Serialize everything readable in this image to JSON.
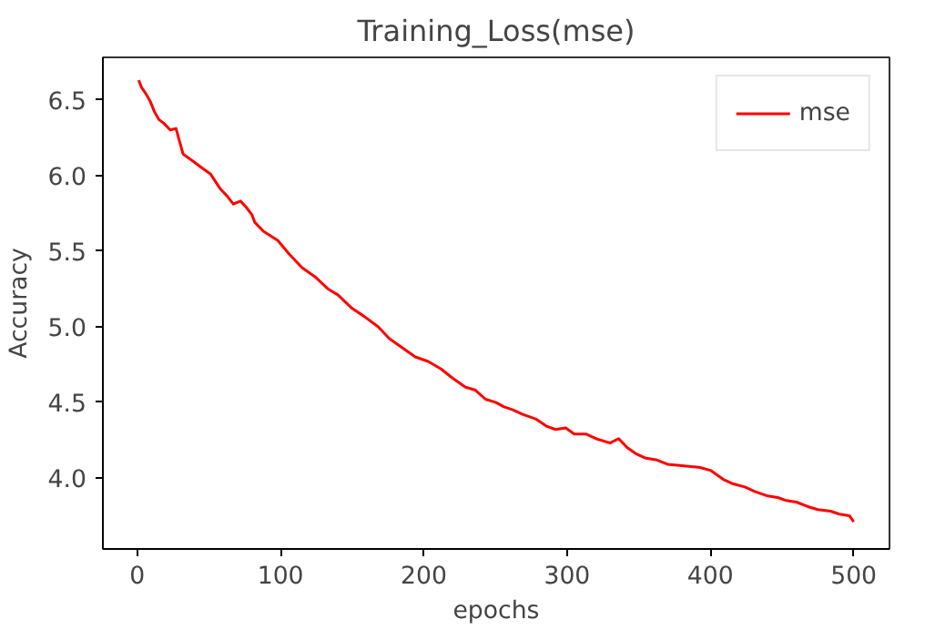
{
  "chart_data": {
    "type": "line",
    "title": "Training_Loss(mse)",
    "xlabel": "epochs",
    "ylabel": "Accuracy",
    "xlim": [
      -24,
      525
    ],
    "ylim": [
      3.53,
      6.78
    ],
    "xticks": [
      0,
      100,
      200,
      300,
      400,
      500
    ],
    "yticks": [
      {
        "value": 4.0,
        "label": "4.0"
      },
      {
        "value": 4.5,
        "label": "4.5"
      },
      {
        "value": 5.0,
        "label": "5.0"
      },
      {
        "value": 5.5,
        "label": "5.5"
      },
      {
        "value": 6.0,
        "label": "6.0"
      },
      {
        "value": 6.5,
        "label": "6.5"
      }
    ],
    "grid": false,
    "legend": "top right",
    "marker": "none",
    "line_style": "solid",
    "series": [
      {
        "name": "mse",
        "color": "#ff0000",
        "x": [
          1,
          3,
          6,
          9,
          12,
          15,
          19,
          23,
          27,
          32,
          38,
          45,
          51,
          58,
          63,
          67,
          72,
          76,
          80,
          82,
          88,
          98,
          106,
          115,
          124,
          133,
          140,
          150,
          158,
          168,
          176,
          185,
          194,
          203,
          212,
          220,
          229,
          236,
          243,
          250,
          256,
          262,
          269,
          278,
          286,
          292,
          299,
          305,
          313,
          320,
          330,
          336,
          342,
          348,
          355,
          362,
          370,
          380,
          392,
          400,
          409,
          416,
          424,
          431,
          440,
          447,
          453,
          460,
          468,
          475,
          484,
          490,
          497,
          500
        ],
        "values": [
          6.63,
          6.58,
          6.54,
          6.49,
          6.42,
          6.37,
          6.34,
          6.3,
          6.31,
          6.14,
          6.1,
          6.05,
          6.01,
          5.91,
          5.86,
          5.81,
          5.83,
          5.79,
          5.74,
          5.69,
          5.63,
          5.57,
          5.48,
          5.39,
          5.33,
          5.25,
          5.21,
          5.12,
          5.07,
          5.0,
          4.92,
          4.86,
          4.8,
          4.77,
          4.72,
          4.66,
          4.6,
          4.58,
          4.52,
          4.5,
          4.47,
          4.45,
          4.42,
          4.39,
          4.34,
          4.32,
          4.33,
          4.29,
          4.29,
          4.26,
          4.23,
          4.26,
          4.2,
          4.16,
          4.13,
          4.12,
          4.09,
          4.08,
          4.07,
          4.05,
          3.99,
          3.96,
          3.94,
          3.91,
          3.88,
          3.87,
          3.85,
          3.84,
          3.81,
          3.79,
          3.78,
          3.76,
          3.75,
          3.71
        ]
      }
    ]
  }
}
